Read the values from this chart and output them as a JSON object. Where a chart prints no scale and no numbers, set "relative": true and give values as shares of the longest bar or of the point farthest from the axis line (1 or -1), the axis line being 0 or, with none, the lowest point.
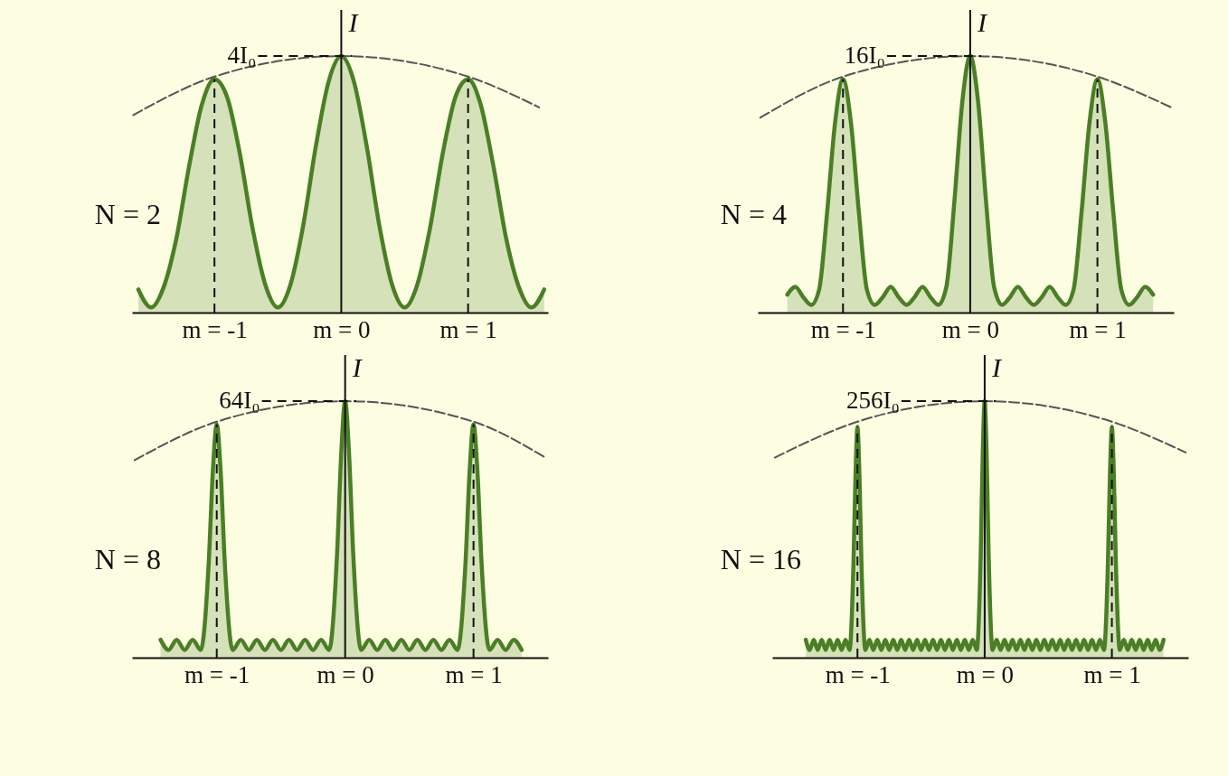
{
  "chart_data": [
    {
      "type": "area",
      "relative": true,
      "ylabel": "I",
      "xlim": [
        -1.65,
        1.63
      ],
      "xticks": [
        {
          "value": -1,
          "label": "m = -1"
        },
        {
          "value": 0,
          "label": "m = 0"
        },
        {
          "value": 1,
          "label": "m = 1"
        }
      ],
      "annotations": [
        "N = 2"
      ],
      "ref_lines": [
        {
          "axis": "y",
          "value": 1,
          "label": "4I₀",
          "line_style": "dashed"
        },
        {
          "axis": "x",
          "value": -1,
          "line_style": "dashed"
        },
        {
          "axis": "x",
          "value": 1,
          "line_style": "dashed"
        }
      ],
      "series": [
        {
          "color": "#4a7f26",
          "x": [
            -1.6,
            -1.5,
            -1.4,
            -1.3,
            -1.2,
            -1.1,
            -1,
            -0.9,
            -0.8,
            -0.7,
            -0.6,
            -0.5,
            -0.4,
            -0.3,
            -0.2,
            -0.1,
            0,
            0.1,
            0.2,
            0.3,
            0.4,
            0.5,
            0.6,
            0.7,
            0.8,
            0.9,
            1,
            1.1,
            1.2,
            1.3,
            1.4,
            1.5,
            1.6
          ],
          "values": [
            0.09,
            0.02,
            0.1,
            0.29,
            0.57,
            0.81,
            0.91,
            0.84,
            0.62,
            0.33,
            0.11,
            0.02,
            0.11,
            0.34,
            0.65,
            0.9,
            1,
            0.9,
            0.65,
            0.34,
            0.11,
            0.02,
            0.11,
            0.33,
            0.62,
            0.84,
            0.91,
            0.81,
            0.57,
            0.29,
            0.1,
            0.02,
            0.09
          ]
        },
        {
          "type": "line",
          "line_style": "dashed",
          "color": "#555555",
          "x": [
            -1.64,
            -1,
            0,
            1,
            1.56
          ],
          "values": [
            0.77,
            0.92,
            1,
            0.92,
            0.8
          ]
        }
      ]
    },
    {
      "type": "area",
      "relative": true,
      "ylabel": "I",
      "xlim": [
        -1.67,
        1.6
      ],
      "xticks": [
        {
          "value": -1,
          "label": "m = -1"
        },
        {
          "value": 0,
          "label": "m = 0"
        },
        {
          "value": 1,
          "label": "m = 1"
        }
      ],
      "annotations": [
        "N = 4"
      ],
      "ref_lines": [
        {
          "axis": "y",
          "value": 1,
          "label": "16I₀",
          "line_style": "dashed"
        },
        {
          "axis": "x",
          "value": -1,
          "line_style": "dashed"
        },
        {
          "axis": "x",
          "value": 1,
          "line_style": "dashed"
        }
      ],
      "series": [
        {
          "color": "#4a7f26",
          "x": [
            -1.4375,
            -1.375,
            -1.3125,
            -1.25,
            -1.1875,
            -1.125,
            -1.0625,
            -1,
            -0.9375,
            -0.875,
            -0.8125,
            -0.75,
            -0.6875,
            -0.625,
            -0.5625,
            -0.5,
            -0.4375,
            -0.375,
            -0.3125,
            -0.25,
            -0.1875,
            -0.125,
            -0.0625,
            0,
            0.0625,
            0.125,
            0.1875,
            0.25,
            0.3125,
            0.375,
            0.4375,
            0.5,
            0.5625,
            0.625,
            0.6875,
            0.75,
            0.8125,
            0.875,
            0.9375,
            1,
            1.0625,
            1.125,
            1.1875,
            1.25,
            1.3125,
            1.375,
            1.4375
          ],
          "values": [
            0.07,
            0.1,
            0.06,
            0.03,
            0.09,
            0.39,
            0.74,
            0.91,
            0.74,
            0.39,
            0.09,
            0.03,
            0.06,
            0.1,
            0.06,
            0.03,
            0.06,
            0.1,
            0.06,
            0.03,
            0.1,
            0.43,
            0.82,
            1,
            0.82,
            0.43,
            0.1,
            0.03,
            0.06,
            0.1,
            0.06,
            0.03,
            0.06,
            0.1,
            0.06,
            0.03,
            0.09,
            0.39,
            0.74,
            0.91,
            0.74,
            0.39,
            0.09,
            0.03,
            0.06,
            0.1,
            0.07
          ]
        },
        {
          "type": "line",
          "line_style": "dashed",
          "color": "#555555",
          "x": [
            -1.65,
            -1,
            0,
            1,
            1.58
          ],
          "values": [
            0.76,
            0.92,
            1,
            0.92,
            0.8
          ]
        }
      ]
    },
    {
      "type": "area",
      "relative": true,
      "ylabel": "I",
      "xlim": [
        -1.66,
        1.58
      ],
      "xticks": [
        {
          "value": -1,
          "label": "m = -1"
        },
        {
          "value": 0,
          "label": "m = 0"
        },
        {
          "value": 1,
          "label": "m = 1"
        }
      ],
      "annotations": [
        "N = 8"
      ],
      "ref_lines": [
        {
          "axis": "y",
          "value": 1,
          "label": "64I₀",
          "line_style": "dashed"
        },
        {
          "axis": "x",
          "value": -1,
          "line_style": "dashed"
        },
        {
          "axis": "x",
          "value": 1,
          "line_style": "dashed"
        }
      ],
      "series": [
        {
          "color": "#4a7f26",
          "x": [
            -1.4375,
            -1.375,
            -1.3125,
            -1.25,
            -1.1875,
            -1.125,
            -1.0625,
            -1.03,
            -1,
            -0.97,
            -0.9375,
            -0.875,
            -0.8125,
            -0.75,
            -0.6875,
            -0.625,
            -0.5625,
            -0.5,
            -0.4375,
            -0.375,
            -0.3125,
            -0.25,
            -0.1875,
            -0.125,
            -0.0625,
            -0.03,
            0,
            0.03,
            0.0625,
            0.125,
            0.1875,
            0.25,
            0.3125,
            0.375,
            0.4375,
            0.5,
            0.5625,
            0.625,
            0.6875,
            0.75,
            0.8125,
            0.875,
            0.9375,
            0.97,
            1,
            1.03,
            1.0625,
            1.125,
            1.1875,
            1.25,
            1.3125,
            1.375
          ],
          "values": [
            0.07,
            0.03,
            0.07,
            0.03,
            0.07,
            0.03,
            0.37,
            0.73,
            0.91,
            0.73,
            0.37,
            0.03,
            0.07,
            0.03,
            0.07,
            0.03,
            0.07,
            0.03,
            0.07,
            0.03,
            0.07,
            0.03,
            0.07,
            0.03,
            0.41,
            0.8,
            1,
            0.8,
            0.41,
            0.03,
            0.07,
            0.03,
            0.07,
            0.03,
            0.07,
            0.03,
            0.07,
            0.03,
            0.07,
            0.03,
            0.07,
            0.03,
            0.37,
            0.73,
            0.91,
            0.73,
            0.37,
            0.03,
            0.07,
            0.03,
            0.07,
            0.03
          ]
        },
        {
          "type": "line",
          "line_style": "dashed",
          "color": "#555555",
          "x": [
            -1.64,
            -1,
            0,
            1,
            1.56
          ],
          "values": [
            0.77,
            0.92,
            1,
            0.92,
            0.78
          ]
        }
      ]
    },
    {
      "type": "area",
      "relative": true,
      "ylabel": "I",
      "xlim": [
        -1.67,
        1.6
      ],
      "xticks": [
        {
          "value": -1,
          "label": "m = -1"
        },
        {
          "value": 0,
          "label": "m = 0"
        },
        {
          "value": 1,
          "label": "m = 1"
        }
      ],
      "annotations": [
        "N = 16"
      ],
      "ref_lines": [
        {
          "axis": "y",
          "value": 1,
          "label": "256I₀",
          "line_style": "dashed"
        },
        {
          "axis": "x",
          "value": -1,
          "line_style": "dashed"
        },
        {
          "axis": "x",
          "value": 1,
          "line_style": "dashed"
        }
      ],
      "series": [
        {
          "color": "#4a7f26",
          "x": [
            -1.4063,
            -1.375,
            -1.3438,
            -1.3125,
            -1.2813,
            -1.25,
            -1.2188,
            -1.1875,
            -1.1563,
            -1.125,
            -1.0938,
            -1.0625,
            -1.0313,
            -1.015,
            -1,
            -0.985,
            -0.9688,
            -0.9375,
            -0.9063,
            -0.875,
            -0.8438,
            -0.8125,
            -0.7813,
            -0.75,
            -0.7188,
            -0.6875,
            -0.6563,
            -0.625,
            -0.5938,
            -0.5625,
            -0.5313,
            -0.5,
            -0.4688,
            -0.4375,
            -0.4063,
            -0.375,
            -0.3438,
            -0.3125,
            -0.2813,
            -0.25,
            -0.2188,
            -0.1875,
            -0.1563,
            -0.125,
            -0.0938,
            -0.0625,
            -0.0313,
            -0.015,
            0,
            0.015,
            0.0313,
            0.0625,
            0.0938,
            0.125,
            0.1563,
            0.1875,
            0.2188,
            0.25,
            0.2813,
            0.3125,
            0.3438,
            0.375,
            0.4063,
            0.4375,
            0.4688,
            0.5,
            0.5313,
            0.5625,
            0.5938,
            0.625,
            0.6563,
            0.6875,
            0.7188,
            0.75,
            0.7813,
            0.8125,
            0.8438,
            0.875,
            0.9063,
            0.9375,
            0.9688,
            0.985,
            1,
            1.015,
            1.0313,
            1.0625,
            1.0938,
            1.125,
            1.1563,
            1.1875,
            1.2188,
            1.25,
            1.2813,
            1.3125,
            1.3438,
            1.375,
            1.4063
          ],
          "values": [
            0.07,
            0.03,
            0.07,
            0.03,
            0.07,
            0.03,
            0.07,
            0.03,
            0.07,
            0.03,
            0.07,
            0.03,
            0.37,
            0.72,
            0.9,
            0.72,
            0.37,
            0.03,
            0.07,
            0.03,
            0.07,
            0.03,
            0.07,
            0.03,
            0.07,
            0.03,
            0.07,
            0.03,
            0.07,
            0.03,
            0.07,
            0.03,
            0.07,
            0.03,
            0.07,
            0.03,
            0.07,
            0.03,
            0.07,
            0.03,
            0.07,
            0.03,
            0.07,
            0.03,
            0.07,
            0.03,
            0.4,
            0.8,
            1,
            0.8,
            0.4,
            0.03,
            0.07,
            0.03,
            0.07,
            0.03,
            0.07,
            0.03,
            0.07,
            0.03,
            0.07,
            0.03,
            0.07,
            0.03,
            0.07,
            0.03,
            0.07,
            0.03,
            0.07,
            0.03,
            0.07,
            0.03,
            0.07,
            0.03,
            0.07,
            0.03,
            0.07,
            0.03,
            0.07,
            0.03,
            0.37,
            0.72,
            0.9,
            0.72,
            0.37,
            0.03,
            0.07,
            0.03,
            0.07,
            0.03,
            0.07,
            0.03,
            0.07,
            0.03,
            0.07,
            0.03,
            0.07
          ]
        },
        {
          "type": "line",
          "line_style": "dashed",
          "color": "#555555",
          "x": [
            -1.65,
            -1,
            0,
            1,
            1.58
          ],
          "values": [
            0.78,
            0.92,
            1,
            0.92,
            0.8
          ]
        }
      ]
    }
  ]
}
